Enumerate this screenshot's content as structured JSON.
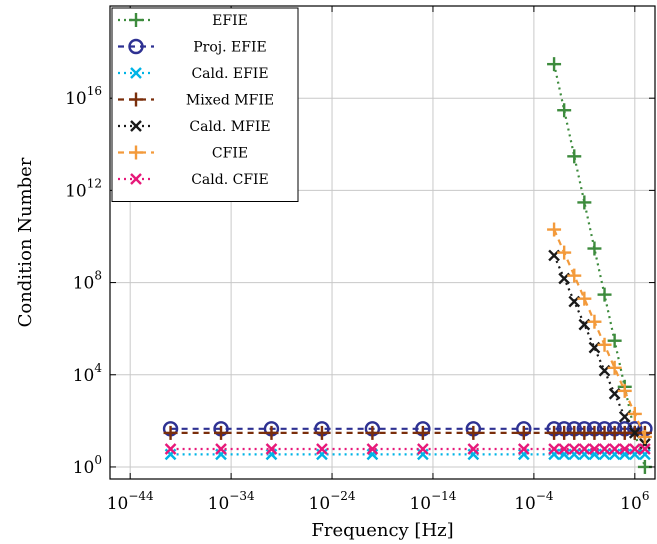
{
  "chart_data": {
    "type": "line",
    "xlabel": "Frequency [Hz]",
    "ylabel": "Condition Number",
    "x_scale": "log",
    "y_scale": "log",
    "xlim": [
      1e-46,
      100000000.0
    ],
    "ylim": [
      0.3,
      1e+20
    ],
    "grid": true,
    "legend_position": "top-left",
    "x_ticks": [
      {
        "base": "10",
        "exp": "−44",
        "value": 1e-44
      },
      {
        "base": "10",
        "exp": "−34",
        "value": 1e-34
      },
      {
        "base": "10",
        "exp": "−24",
        "value": 1e-24
      },
      {
        "base": "10",
        "exp": "−14",
        "value": 1e-14
      },
      {
        "base": "10",
        "exp": "−4",
        "value": 0.0001
      },
      {
        "base": "10",
        "exp": "6",
        "value": 1000000.0
      }
    ],
    "y_ticks": [
      {
        "base": "10",
        "exp": "0",
        "value": 1
      },
      {
        "base": "10",
        "exp": "4",
        "value": 10000.0
      },
      {
        "base": "10",
        "exp": "8",
        "value": 100000000.0
      },
      {
        "base": "10",
        "exp": "12",
        "value": 1000000000000.0
      },
      {
        "base": "10",
        "exp": "16",
        "value": 1e+16
      }
    ],
    "series": [
      {
        "name": "EFIE",
        "color": "#3d8b3d",
        "marker": "plus",
        "dash": "2,4",
        "x": [
          0.01,
          0.1,
          1,
          10.0,
          100.0,
          1000.0,
          10000.0,
          100000.0,
          1000000.0,
          10000000.0
        ],
        "y": [
          3e+17,
          3000000000000000.0,
          30000000000000.0,
          300000000000.0,
          3000000000.0,
          30000000.0,
          300000.0,
          3000.0,
          30,
          1
        ]
      },
      {
        "name": "Proj. EFIE",
        "color": "#2e3192",
        "marker": "circle",
        "dash": "6,5",
        "x": [
          1e-40,
          1e-35,
          1e-30,
          1e-25,
          1e-20,
          1e-15,
          1e-10,
          1e-05,
          0.01,
          0.1,
          1,
          10.0,
          100.0,
          1000.0,
          10000.0,
          100000.0,
          1000000.0,
          10000000.0
        ],
        "y": [
          45,
          45,
          45,
          45,
          45,
          45,
          45,
          45,
          45,
          45,
          45,
          45,
          45,
          45,
          45,
          45,
          45,
          45
        ]
      },
      {
        "name": "Cald. EFIE",
        "color": "#00b4e6",
        "marker": "x",
        "dash": "2,4",
        "x": [
          1e-40,
          1e-35,
          1e-30,
          1e-25,
          1e-20,
          1e-15,
          1e-10,
          1e-05,
          0.01,
          0.1,
          1,
          10.0,
          100.0,
          1000.0,
          10000.0,
          100000.0,
          1000000.0,
          10000000.0
        ],
        "y": [
          3.5,
          3.5,
          3.5,
          3.5,
          3.5,
          3.5,
          3.5,
          3.5,
          3.5,
          3.5,
          3.5,
          3.5,
          3.5,
          3.5,
          3.5,
          3.5,
          3.5,
          3.5
        ]
      },
      {
        "name": "Mixed MFIE",
        "color": "#7a2e0b",
        "marker": "plus",
        "dash": "6,5",
        "x": [
          1e-40,
          1e-35,
          1e-30,
          1e-25,
          1e-20,
          1e-15,
          1e-10,
          1e-05,
          0.01,
          0.1,
          1,
          10.0,
          100.0,
          1000.0,
          10000.0,
          100000.0,
          1000000.0,
          10000000.0
        ],
        "y": [
          30,
          30,
          30,
          30,
          30,
          30,
          30,
          30,
          30,
          30,
          30,
          30,
          30,
          30,
          30,
          30,
          30,
          30
        ]
      },
      {
        "name": "Cald. MFIE",
        "color": "#1a1a1a",
        "marker": "x",
        "dash": "2,4",
        "x": [
          0.01,
          0.1,
          1,
          10.0,
          100.0,
          1000.0,
          10000.0,
          100000.0,
          1000000.0,
          10000000.0
        ],
        "y": [
          1500000000.0,
          150000000.0,
          15000000.0,
          1500000.0,
          150000.0,
          15000.0,
          1500.0,
          150,
          30,
          10
        ]
      },
      {
        "name": "CFIE",
        "color": "#f39a3b",
        "marker": "plus",
        "dash": "6,5",
        "x": [
          0.01,
          0.1,
          1,
          10.0,
          100.0,
          1000.0,
          10000.0,
          100000.0,
          1000000.0,
          10000000.0
        ],
        "y": [
          20000000000.0,
          2000000000.0,
          200000000.0,
          20000000.0,
          2000000.0,
          200000.0,
          20000.0,
          2000.0,
          200,
          20
        ]
      },
      {
        "name": "Cald. CFIE",
        "color": "#e6197a",
        "marker": "x",
        "dash": "2,4",
        "x": [
          1e-40,
          1e-35,
          1e-30,
          1e-25,
          1e-20,
          1e-15,
          1e-10,
          1e-05,
          0.01,
          0.1,
          1,
          10.0,
          100.0,
          1000.0,
          10000.0,
          100000.0,
          1000000.0,
          10000000.0
        ],
        "y": [
          6,
          6,
          6,
          6,
          6,
          6,
          6,
          6,
          6,
          6,
          6,
          6,
          6,
          6,
          6,
          6,
          6,
          6
        ]
      }
    ]
  }
}
